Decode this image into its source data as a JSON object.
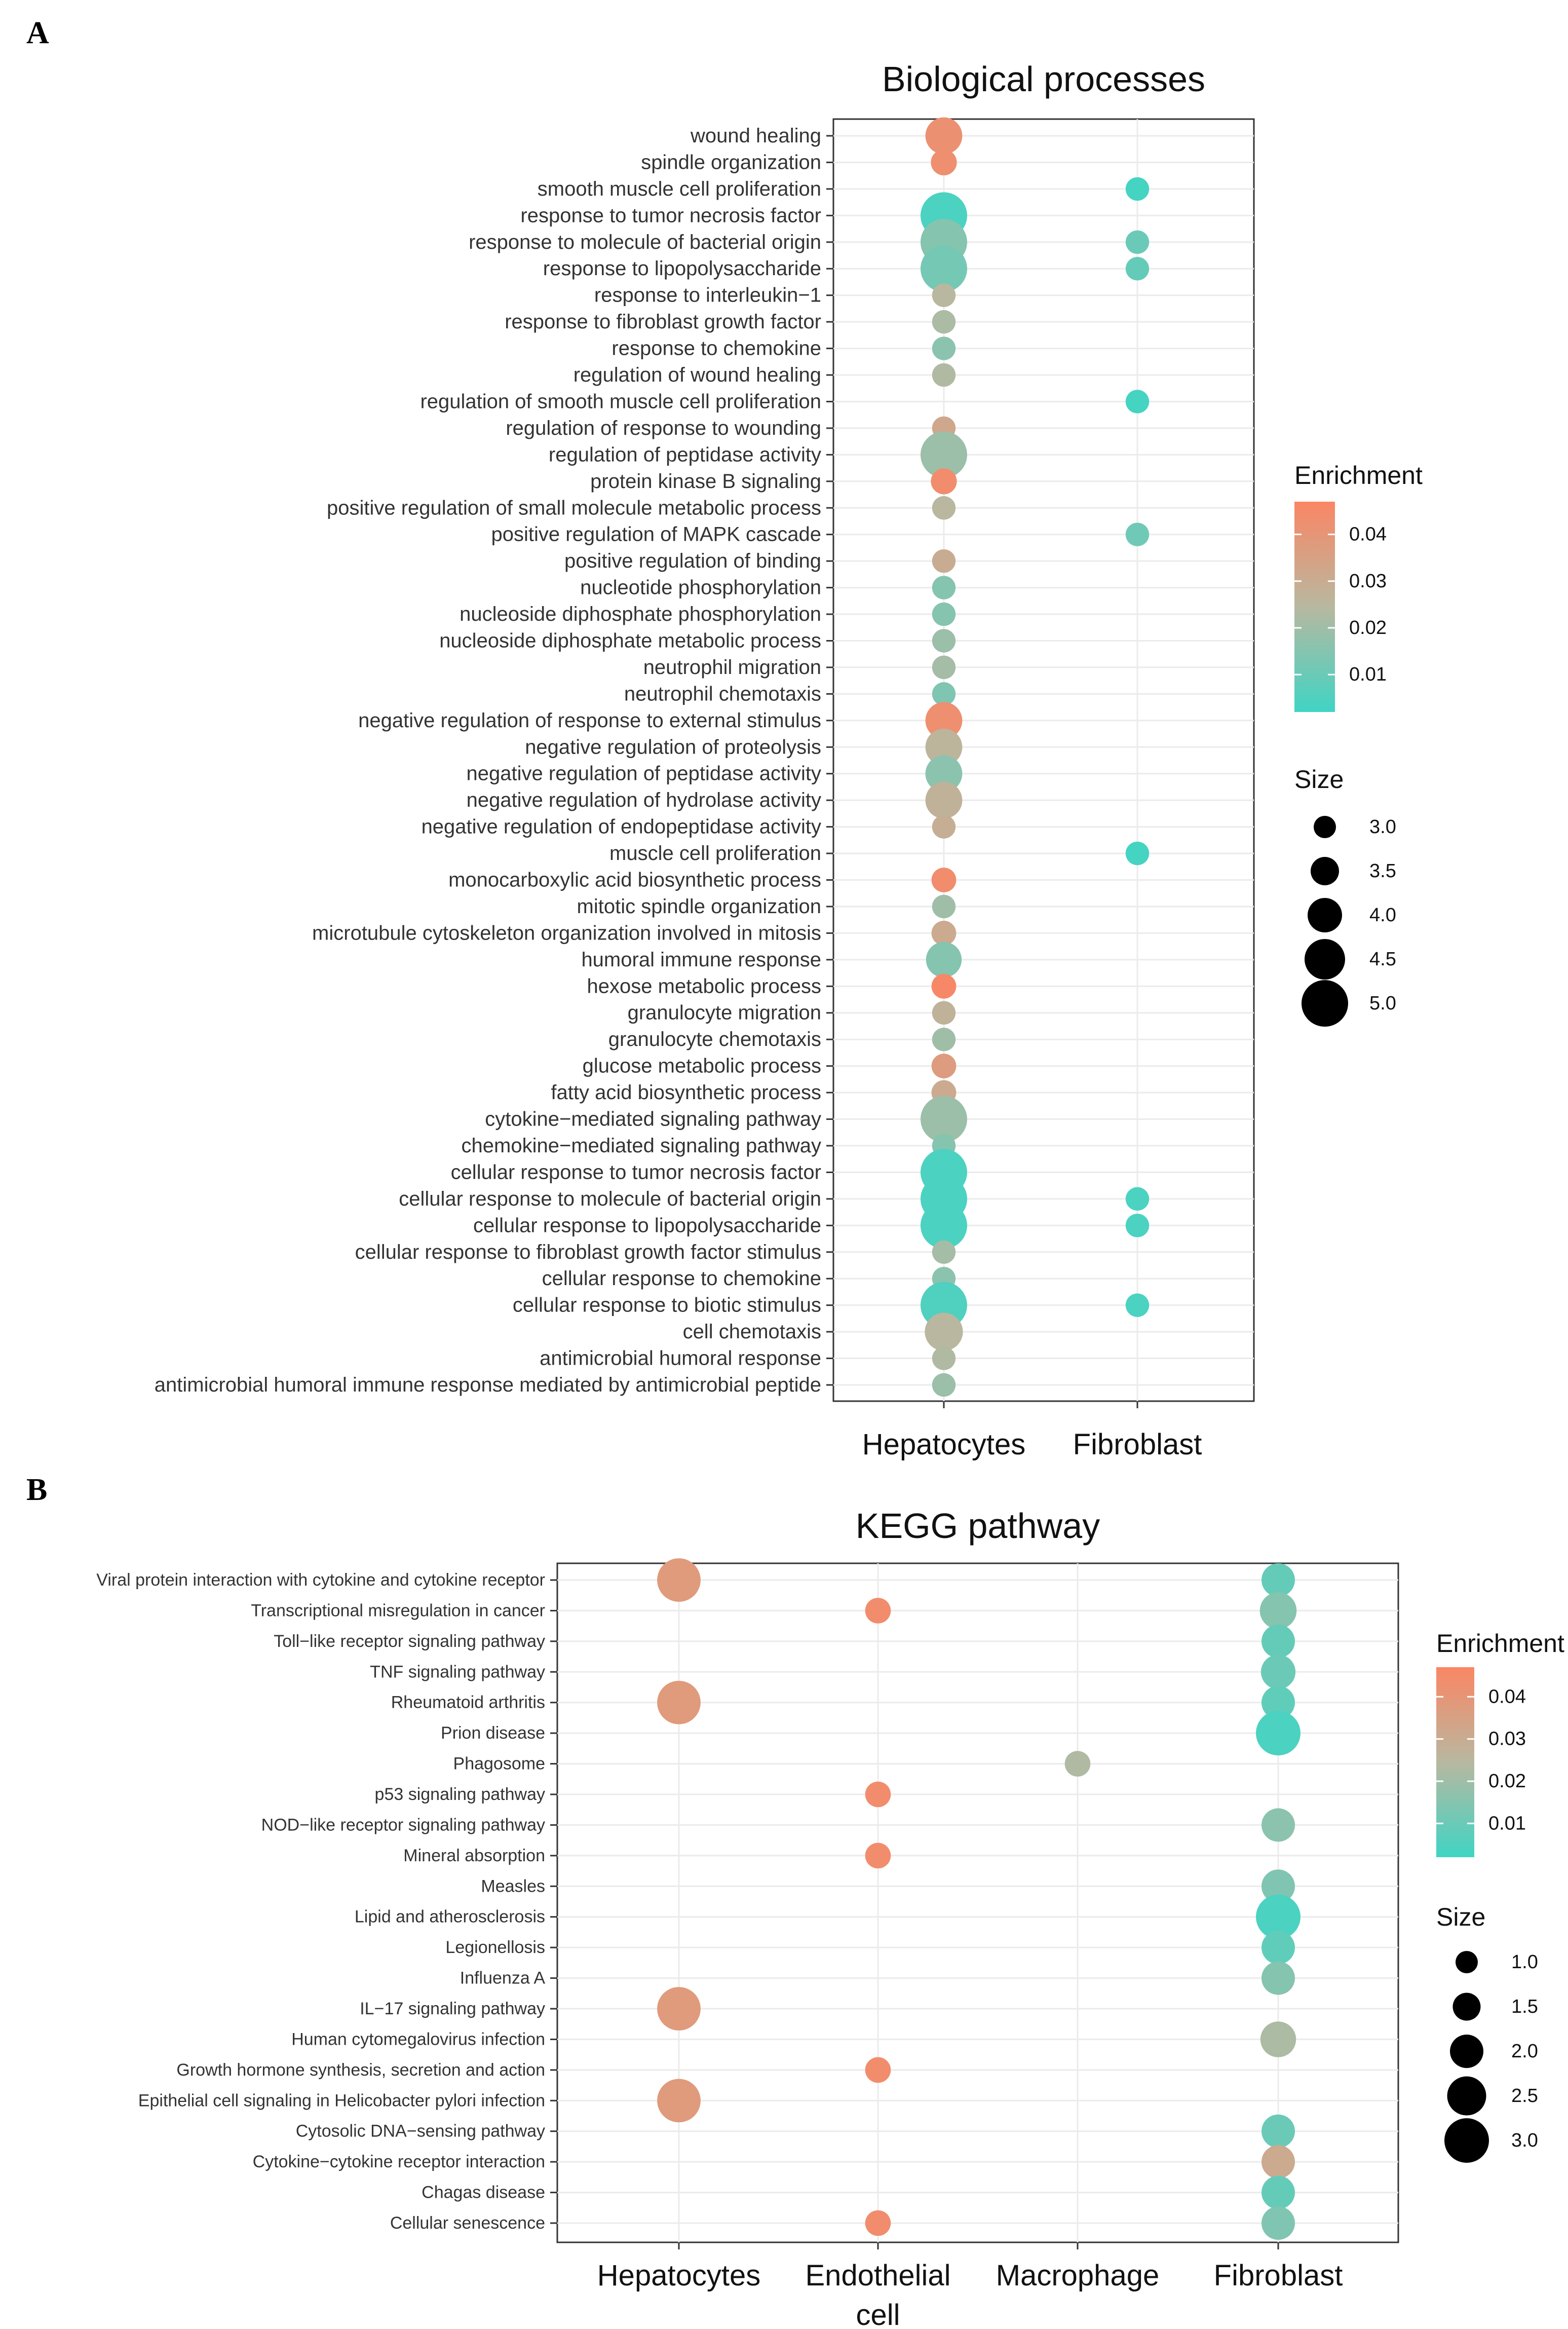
{
  "panel_labels": {
    "a": "A",
    "b": "B"
  },
  "chart_data": [
    {
      "type": "scatter",
      "title": "Biological processes",
      "xlabel": "",
      "ylabel": "",
      "columns": [
        "Hepatocytes",
        "Fibroblast"
      ],
      "terms": [
        "wound healing",
        "spindle organization",
        "smooth muscle cell proliferation",
        "response to tumor necrosis factor",
        "response to molecule of bacterial origin",
        "response to lipopolysaccharide",
        "response to interleukin−1",
        "response to fibroblast growth factor",
        "response to chemokine",
        "regulation of wound healing",
        "regulation of smooth muscle cell proliferation",
        "regulation of response to wounding",
        "regulation of peptidase activity",
        "protein kinase B signaling",
        "positive regulation of small molecule metabolic process",
        "positive regulation of MAPK cascade",
        "positive regulation of binding",
        "nucleotide phosphorylation",
        "nucleoside diphosphate phosphorylation",
        "nucleoside diphosphate metabolic process",
        "neutrophil migration",
        "neutrophil chemotaxis",
        "negative regulation of response to external stimulus",
        "negative regulation of proteolysis",
        "negative regulation of peptidase activity",
        "negative regulation of hydrolase activity",
        "negative regulation of endopeptidase activity",
        "muscle cell proliferation",
        "monocarboxylic acid biosynthetic process",
        "mitotic spindle organization",
        "microtubule cytoskeleton organization involved in mitosis",
        "humoral immune response",
        "hexose metabolic process",
        "granulocyte migration",
        "granulocyte chemotaxis",
        "glucose metabolic process",
        "fatty acid biosynthetic process",
        "cytokine−mediated signaling pathway",
        "chemokine−mediated signaling pathway",
        "cellular response to tumor necrosis factor",
        "cellular response to molecule of bacterial origin",
        "cellular response to lipopolysaccharide",
        "cellular response to fibroblast growth factor stimulus",
        "cellular response to chemokine",
        "cellular response to biotic stimulus",
        "cell chemotaxis",
        "antimicrobial humoral response",
        "antimicrobial humoral immune response mediated by antimicrobial peptide"
      ],
      "points": [
        {
          "term": 0,
          "col": 0,
          "size": 4.2,
          "enrichment": 0.042
        },
        {
          "term": 1,
          "col": 0,
          "size": 3.3,
          "enrichment": 0.043
        },
        {
          "term": 2,
          "col": 1,
          "size": 3.1,
          "enrichment": 0.003
        },
        {
          "term": 3,
          "col": 0,
          "size": 5.0,
          "enrichment": 0.004
        },
        {
          "term": 4,
          "col": 0,
          "size": 5.0,
          "enrichment": 0.015
        },
        {
          "term": 4,
          "col": 1,
          "size": 3.1,
          "enrichment": 0.01
        },
        {
          "term": 5,
          "col": 0,
          "size": 5.0,
          "enrichment": 0.012
        },
        {
          "term": 5,
          "col": 1,
          "size": 3.1,
          "enrichment": 0.009
        },
        {
          "term": 6,
          "col": 0,
          "size": 3.1,
          "enrichment": 0.025
        },
        {
          "term": 7,
          "col": 0,
          "size": 3.1,
          "enrichment": 0.022
        },
        {
          "term": 8,
          "col": 0,
          "size": 3.1,
          "enrichment": 0.016
        },
        {
          "term": 9,
          "col": 0,
          "size": 3.1,
          "enrichment": 0.023
        },
        {
          "term": 10,
          "col": 1,
          "size": 3.1,
          "enrichment": 0.003
        },
        {
          "term": 11,
          "col": 0,
          "size": 3.1,
          "enrichment": 0.032
        },
        {
          "term": 12,
          "col": 0,
          "size": 5.0,
          "enrichment": 0.019
        },
        {
          "term": 13,
          "col": 0,
          "size": 3.3,
          "enrichment": 0.044
        },
        {
          "term": 14,
          "col": 0,
          "size": 3.1,
          "enrichment": 0.025
        },
        {
          "term": 15,
          "col": 1,
          "size": 3.1,
          "enrichment": 0.011
        },
        {
          "term": 16,
          "col": 0,
          "size": 3.1,
          "enrichment": 0.03
        },
        {
          "term": 17,
          "col": 0,
          "size": 3.1,
          "enrichment": 0.015
        },
        {
          "term": 18,
          "col": 0,
          "size": 3.1,
          "enrichment": 0.015
        },
        {
          "term": 19,
          "col": 0,
          "size": 3.1,
          "enrichment": 0.019
        },
        {
          "term": 20,
          "col": 0,
          "size": 3.1,
          "enrichment": 0.021
        },
        {
          "term": 21,
          "col": 0,
          "size": 3.1,
          "enrichment": 0.014
        },
        {
          "term": 22,
          "col": 0,
          "size": 4.2,
          "enrichment": 0.043
        },
        {
          "term": 23,
          "col": 0,
          "size": 4.2,
          "enrichment": 0.026
        },
        {
          "term": 24,
          "col": 0,
          "size": 4.2,
          "enrichment": 0.016
        },
        {
          "term": 25,
          "col": 0,
          "size": 4.2,
          "enrichment": 0.027
        },
        {
          "term": 26,
          "col": 0,
          "size": 3.1,
          "enrichment": 0.029
        },
        {
          "term": 27,
          "col": 1,
          "size": 3.1,
          "enrichment": 0.003
        },
        {
          "term": 28,
          "col": 0,
          "size": 3.2,
          "enrichment": 0.044
        },
        {
          "term": 29,
          "col": 0,
          "size": 3.1,
          "enrichment": 0.02
        },
        {
          "term": 30,
          "col": 0,
          "size": 3.2,
          "enrichment": 0.031
        },
        {
          "term": 31,
          "col": 0,
          "size": 4.1,
          "enrichment": 0.015
        },
        {
          "term": 32,
          "col": 0,
          "size": 3.2,
          "enrichment": 0.046
        },
        {
          "term": 33,
          "col": 0,
          "size": 3.1,
          "enrichment": 0.027
        },
        {
          "term": 34,
          "col": 0,
          "size": 3.1,
          "enrichment": 0.02
        },
        {
          "term": 35,
          "col": 0,
          "size": 3.2,
          "enrichment": 0.037
        },
        {
          "term": 36,
          "col": 0,
          "size": 3.2,
          "enrichment": 0.031
        },
        {
          "term": 37,
          "col": 0,
          "size": 5.0,
          "enrichment": 0.019
        },
        {
          "term": 38,
          "col": 0,
          "size": 3.1,
          "enrichment": 0.015
        },
        {
          "term": 39,
          "col": 0,
          "size": 5.0,
          "enrichment": 0.004
        },
        {
          "term": 40,
          "col": 0,
          "size": 5.0,
          "enrichment": 0.004
        },
        {
          "term": 40,
          "col": 1,
          "size": 3.1,
          "enrichment": 0.004
        },
        {
          "term": 41,
          "col": 0,
          "size": 5.0,
          "enrichment": 0.004
        },
        {
          "term": 41,
          "col": 1,
          "size": 3.1,
          "enrichment": 0.004
        },
        {
          "term": 42,
          "col": 0,
          "size": 3.1,
          "enrichment": 0.021
        },
        {
          "term": 43,
          "col": 0,
          "size": 3.1,
          "enrichment": 0.016
        },
        {
          "term": 44,
          "col": 0,
          "size": 5.0,
          "enrichment": 0.005
        },
        {
          "term": 44,
          "col": 1,
          "size": 3.1,
          "enrichment": 0.004
        },
        {
          "term": 45,
          "col": 0,
          "size": 4.3,
          "enrichment": 0.025
        },
        {
          "term": 46,
          "col": 0,
          "size": 3.1,
          "enrichment": 0.023
        },
        {
          "term": 47,
          "col": 0,
          "size": 3.1,
          "enrichment": 0.019
        }
      ],
      "legend": {
        "color_title": "Enrichment",
        "color_ticks": [
          0.04,
          0.03,
          0.02,
          0.01
        ],
        "color_tick_labels": [
          "0.04",
          "0.03",
          "0.02",
          "0.01"
        ],
        "color_range": [
          0.002,
          0.047
        ],
        "size_title": "Size",
        "size_values": [
          3.0,
          3.5,
          4.0,
          4.5,
          5.0
        ],
        "size_labels": [
          "3.0",
          "3.5",
          "4.0",
          "4.5",
          "5.0"
        ],
        "position": "right"
      },
      "size_range": [
        3.0,
        5.0
      ],
      "grid": true
    },
    {
      "type": "scatter",
      "title": "KEGG pathway",
      "xlabel": "",
      "ylabel": "",
      "columns": [
        "Hepatocytes",
        "Endothelial cell",
        "Macrophage",
        "Fibroblast"
      ],
      "terms": [
        "Viral protein interaction with cytokine and cytokine receptor",
        "Transcriptional misregulation in cancer",
        "Toll−like receptor signaling pathway",
        "TNF signaling pathway",
        "Rheumatoid arthritis",
        "Prion disease",
        "Phagosome",
        "p53 signaling pathway",
        "NOD−like receptor signaling pathway",
        "Mineral absorption",
        "Measles",
        "Lipid and atherosclerosis",
        "Legionellosis",
        "Influenza A",
        "IL−17 signaling pathway",
        "Human cytomegalovirus infection",
        "Growth hormone synthesis, secretion and action",
        "Epithelial cell signaling in Helicobacter pylori infection",
        "Cytosolic DNA−sensing pathway",
        "Cytokine−cytokine receptor interaction",
        "Chagas disease",
        "Cellular senescence"
      ],
      "points": [
        {
          "term": 0,
          "col": 0,
          "size": 2.9,
          "enrichment": 0.038
        },
        {
          "term": 0,
          "col": 3,
          "size": 2.0,
          "enrichment": 0.009
        },
        {
          "term": 1,
          "col": 1,
          "size": 1.3,
          "enrichment": 0.044
        },
        {
          "term": 1,
          "col": 3,
          "size": 2.3,
          "enrichment": 0.015
        },
        {
          "term": 2,
          "col": 3,
          "size": 2.0,
          "enrichment": 0.009
        },
        {
          "term": 3,
          "col": 3,
          "size": 2.1,
          "enrichment": 0.01
        },
        {
          "term": 4,
          "col": 0,
          "size": 2.9,
          "enrichment": 0.038
        },
        {
          "term": 4,
          "col": 3,
          "size": 2.0,
          "enrichment": 0.008
        },
        {
          "term": 5,
          "col": 3,
          "size": 3.0,
          "enrichment": 0.004
        },
        {
          "term": 6,
          "col": 2,
          "size": 1.3,
          "enrichment": 0.023
        },
        {
          "term": 7,
          "col": 1,
          "size": 1.3,
          "enrichment": 0.044
        },
        {
          "term": 8,
          "col": 3,
          "size": 2.0,
          "enrichment": 0.016
        },
        {
          "term": 9,
          "col": 1,
          "size": 1.3,
          "enrichment": 0.044
        },
        {
          "term": 10,
          "col": 3,
          "size": 2.0,
          "enrichment": 0.014
        },
        {
          "term": 11,
          "col": 3,
          "size": 3.0,
          "enrichment": 0.004
        },
        {
          "term": 12,
          "col": 3,
          "size": 2.0,
          "enrichment": 0.008
        },
        {
          "term": 13,
          "col": 3,
          "size": 2.0,
          "enrichment": 0.015
        },
        {
          "term": 14,
          "col": 0,
          "size": 2.9,
          "enrichment": 0.038
        },
        {
          "term": 15,
          "col": 3,
          "size": 2.2,
          "enrichment": 0.022
        },
        {
          "term": 16,
          "col": 1,
          "size": 1.3,
          "enrichment": 0.044
        },
        {
          "term": 17,
          "col": 0,
          "size": 2.9,
          "enrichment": 0.038
        },
        {
          "term": 18,
          "col": 3,
          "size": 2.0,
          "enrichment": 0.01
        },
        {
          "term": 19,
          "col": 3,
          "size": 2.0,
          "enrichment": 0.031
        },
        {
          "term": 20,
          "col": 3,
          "size": 2.0,
          "enrichment": 0.009
        },
        {
          "term": 21,
          "col": 1,
          "size": 1.3,
          "enrichment": 0.044
        },
        {
          "term": 21,
          "col": 3,
          "size": 2.0,
          "enrichment": 0.014
        }
      ],
      "legend": {
        "color_title": "Enrichment",
        "color_ticks": [
          0.04,
          0.03,
          0.02,
          0.01
        ],
        "color_tick_labels": [
          "0.04",
          "0.03",
          "0.02",
          "0.01"
        ],
        "color_range": [
          0.002,
          0.047
        ],
        "size_title": "Size",
        "size_values": [
          1.0,
          1.5,
          2.0,
          2.5,
          3.0
        ],
        "size_labels": [
          "1.0",
          "1.5",
          "2.0",
          "2.5",
          "3.0"
        ],
        "position": "right"
      },
      "size_range": [
        1.0,
        3.0
      ],
      "grid": true
    }
  ],
  "colors": {
    "low": "#40d4c4",
    "mid": "#b8b8a0",
    "high": "#fa8664"
  }
}
